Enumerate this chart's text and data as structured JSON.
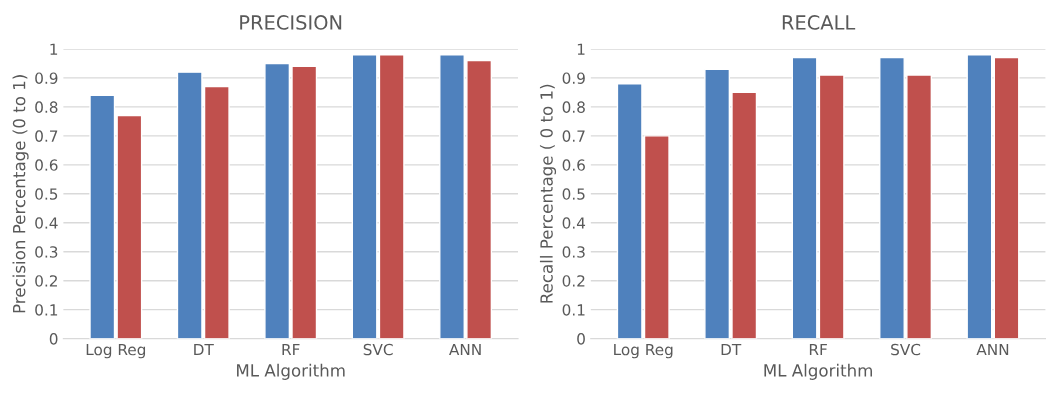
{
  "chart_data": [
    {
      "type": "bar",
      "title": "PRECISION",
      "xlabel": "ML Algorithm",
      "ylabel": "Precision Percentage (0 to 1)",
      "categories": [
        "Log Reg",
        "DT",
        "RF",
        "SVC",
        "ANN"
      ],
      "series": [
        {
          "color": "#4f81bd",
          "values": [
            0.84,
            0.92,
            0.95,
            0.98,
            0.98
          ]
        },
        {
          "color": "#c0504d",
          "values": [
            0.77,
            0.87,
            0.94,
            0.98,
            0.96
          ]
        }
      ],
      "ylim": [
        0,
        1
      ],
      "yticks": [
        0,
        0.1,
        0.2,
        0.3,
        0.4,
        0.5,
        0.6,
        0.7,
        0.8,
        0.9,
        1
      ],
      "grid": "y"
    },
    {
      "type": "bar",
      "title": "RECALL",
      "xlabel": "ML Algorithm",
      "ylabel": "Recall Percentage ( 0 to 1)",
      "categories": [
        "Log Reg",
        "DT",
        "RF",
        "SVC",
        "ANN"
      ],
      "series": [
        {
          "color": "#4f81bd",
          "values": [
            0.88,
            0.93,
            0.97,
            0.97,
            0.98
          ]
        },
        {
          "color": "#c0504d",
          "values": [
            0.7,
            0.85,
            0.91,
            0.91,
            0.97
          ]
        }
      ],
      "ylim": [
        0,
        1
      ],
      "yticks": [
        0,
        0.1,
        0.2,
        0.3,
        0.4,
        0.5,
        0.6,
        0.7,
        0.8,
        0.9,
        1
      ],
      "grid": "y"
    }
  ]
}
